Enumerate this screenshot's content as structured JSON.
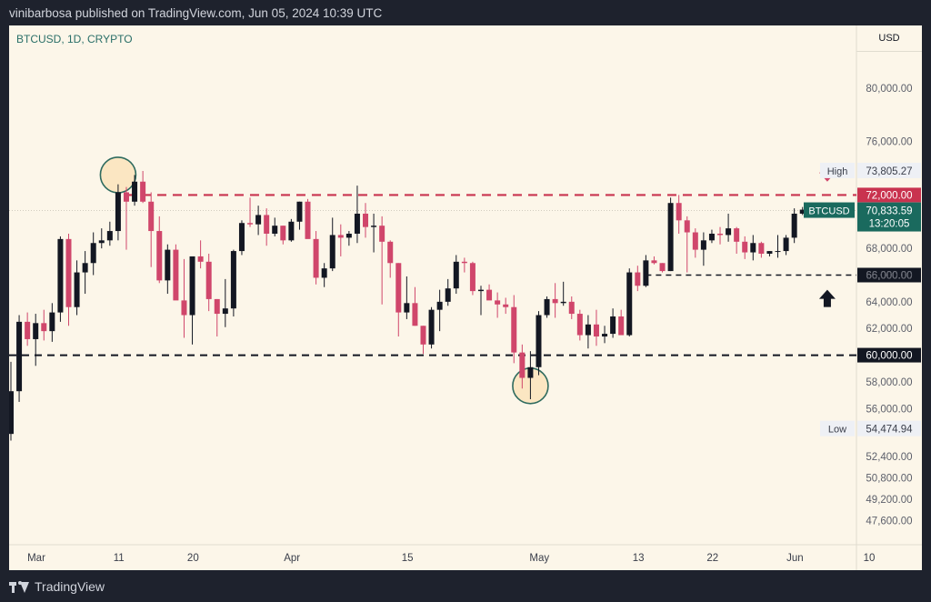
{
  "header": {
    "published_text": "vinibarbosa published on TradingView.com, Jun 05, 2024 10:39 UTC"
  },
  "chart_header": {
    "symbol_info": "BTCUSD, 1D, CRYPTO",
    "currency": "USD"
  },
  "footer": {
    "brand": "TradingView"
  },
  "colors": {
    "background": "#fcf6e9",
    "up_candle": "#131722",
    "down_candle": "#d0466b",
    "resistance_line": "#c9334f",
    "support_line": "#131722",
    "highlight_circle": "#2f6b5f",
    "highlight_fill": "#fbe6c2",
    "price_label": "#1a6a5e"
  },
  "chart_data": {
    "type": "candlestick",
    "title": "BTCUSD, 1D, CRYPTO",
    "ylim": [
      45800,
      84700
    ],
    "y_ticks": [
      "80,000.00",
      "76,000.00",
      "68,000.00",
      "66,000.00",
      "64,000.00",
      "62,000.00",
      "58,000.00",
      "56,000.00",
      "52,400.00",
      "50,800.00",
      "49,200.00",
      "47,600.00"
    ],
    "y_tick_values": [
      80000,
      76000,
      68000,
      66000,
      64000,
      62000,
      58000,
      56000,
      52400,
      50800,
      49200,
      47600
    ],
    "x_ticks": [
      {
        "label": "Mar",
        "day": 0
      },
      {
        "label": "11",
        "day": 10
      },
      {
        "label": "20",
        "day": 19
      },
      {
        "label": "Apr",
        "day": 31
      },
      {
        "label": "15",
        "day": 45
      },
      {
        "label": "May",
        "day": 61
      },
      {
        "label": "13",
        "day": 73
      },
      {
        "label": "22",
        "day": 82
      },
      {
        "label": "Jun",
        "day": 92
      },
      {
        "label": "10",
        "day": 101
      }
    ],
    "candles_ohlc": [
      [
        54100,
        59500,
        53600,
        57300
      ],
      [
        57300,
        63000,
        56500,
        62500
      ],
      [
        62500,
        63200,
        60700,
        61200
      ],
      [
        61200,
        63100,
        59200,
        62400
      ],
      [
        62400,
        63400,
        61100,
        61800
      ],
      [
        61800,
        63900,
        61000,
        63200
      ],
      [
        63200,
        68900,
        62500,
        68700
      ],
      [
        68700,
        69100,
        62200,
        63600
      ],
      [
        63600,
        67100,
        63000,
        66200
      ],
      [
        66200,
        67800,
        64600,
        66900
      ],
      [
        66900,
        69200,
        66000,
        68400
      ],
      [
        68400,
        69500,
        68000,
        68600
      ],
      [
        68600,
        70000,
        68200,
        69300
      ],
      [
        69300,
        72800,
        68600,
        72200
      ],
      [
        72200,
        72600,
        67900,
        71500
      ],
      [
        71500,
        73500,
        71200,
        73000
      ],
      [
        73000,
        73800,
        71400,
        71500
      ],
      [
        71500,
        72200,
        66600,
        69300
      ],
      [
        69300,
        70400,
        65400,
        65600
      ],
      [
        65600,
        68300,
        64600,
        67900
      ],
      [
        67900,
        68300,
        64200,
        64100
      ],
      [
        64100,
        67200,
        61300,
        63000
      ],
      [
        63000,
        67000,
        60800,
        67400
      ],
      [
        67400,
        68600,
        66500,
        67000
      ],
      [
        67000,
        67600,
        63300,
        64200
      ],
      [
        64200,
        64200,
        61400,
        63100
      ],
      [
        63100,
        65700,
        62100,
        63500
      ],
      [
        63500,
        67900,
        62900,
        67800
      ],
      [
        67800,
        70100,
        67500,
        69900
      ],
      [
        69900,
        71800,
        69600,
        69800
      ],
      [
        69800,
        71200,
        69000,
        70500
      ],
      [
        70500,
        71000,
        68200,
        69100
      ],
      [
        69100,
        70300,
        68900,
        69700
      ],
      [
        69700,
        69700,
        68300,
        68600
      ],
      [
        68600,
        70200,
        68500,
        70000
      ],
      [
        70000,
        71500,
        69400,
        71500
      ],
      [
        71500,
        71700,
        68800,
        68700
      ],
      [
        68700,
        69300,
        65300,
        65800
      ],
      [
        65800,
        66900,
        65100,
        66500
      ],
      [
        66500,
        70300,
        66300,
        69000
      ],
      [
        69000,
        69800,
        67400,
        68800
      ],
      [
        68800,
        69300,
        68200,
        69100
      ],
      [
        69100,
        72700,
        68400,
        70600
      ],
      [
        70600,
        71400,
        68800,
        69600
      ],
      [
        69600,
        70600,
        67700,
        69700
      ],
      [
        69700,
        70400,
        63800,
        68500
      ],
      [
        68500,
        68600,
        65800,
        66900
      ],
      [
        66900,
        66900,
        61400,
        63200
      ],
      [
        63200,
        65900,
        62700,
        63900
      ],
      [
        63900,
        65100,
        62200,
        62200
      ],
      [
        62200,
        62200,
        60100,
        60800
      ],
      [
        60800,
        63600,
        60500,
        63400
      ],
      [
        63400,
        64900,
        61800,
        64000
      ],
      [
        64000,
        65700,
        63700,
        65000
      ],
      [
        65000,
        67500,
        64600,
        67000
      ],
      [
        67000,
        67300,
        66200,
        66900
      ],
      [
        66900,
        67000,
        64500,
        64800
      ],
      [
        64800,
        65200,
        63000,
        64900
      ],
      [
        64900,
        65300,
        64300,
        64100
      ],
      [
        64100,
        64700,
        62800,
        63800
      ],
      [
        63800,
        64300,
        63100,
        63600
      ],
      [
        63600,
        64500,
        59400,
        60200
      ],
      [
        60200,
        60800,
        57500,
        58300
      ],
      [
        58300,
        60300,
        56700,
        59100
      ],
      [
        59100,
        63300,
        58500,
        63000
      ],
      [
        63000,
        64400,
        62800,
        64200
      ],
      [
        64200,
        65400,
        62800,
        63900
      ],
      [
        63900,
        65500,
        63700,
        64000
      ],
      [
        64000,
        64400,
        62700,
        63100
      ],
      [
        63100,
        63400,
        61100,
        61500
      ],
      [
        61500,
        63000,
        60500,
        62300
      ],
      [
        62300,
        63400,
        60700,
        61400
      ],
      [
        61400,
        62200,
        60900,
        61600
      ],
      [
        61600,
        63500,
        61300,
        62900
      ],
      [
        62900,
        63400,
        61700,
        61500
      ],
      [
        61500,
        66500,
        61400,
        66200
      ],
      [
        66200,
        66700,
        64800,
        65200
      ],
      [
        65200,
        67500,
        65100,
        67100
      ],
      [
        67100,
        67400,
        66800,
        66900
      ],
      [
        66900,
        66900,
        66200,
        66300
      ],
      [
        66300,
        71800,
        66300,
        71400
      ],
      [
        71400,
        72000,
        69100,
        70100
      ],
      [
        70100,
        70400,
        66200,
        69200
      ],
      [
        69200,
        69500,
        67300,
        67900
      ],
      [
        67900,
        69200,
        66700,
        68600
      ],
      [
        68600,
        69400,
        68400,
        69100
      ],
      [
        69100,
        69600,
        68300,
        69000
      ],
      [
        69000,
        70600,
        68500,
        69500
      ],
      [
        69500,
        69600,
        67600,
        68500
      ],
      [
        68500,
        68900,
        67200,
        67700
      ],
      [
        67700,
        69000,
        67100,
        68400
      ],
      [
        68400,
        68500,
        67300,
        67600
      ],
      [
        67600,
        67800,
        67400,
        67800
      ],
      [
        67800,
        69000,
        67300,
        67800
      ],
      [
        67800,
        69000,
        67500,
        68800
      ],
      [
        68800,
        71000,
        68400,
        70600
      ],
      [
        70600,
        71100,
        70500,
        70900
      ]
    ],
    "lines": [
      {
        "label": "72,000.00",
        "value": 72000,
        "style": "dashed",
        "color": "resistance"
      },
      {
        "label": "66,000.00",
        "value": 66000,
        "style": "dashed",
        "color": "support"
      },
      {
        "label": "60,000.00",
        "value": 60000,
        "style": "dashed",
        "color": "support"
      }
    ],
    "price_labels": {
      "high_label": "High",
      "high_value": "73,805.27",
      "high_price": 73805.27,
      "low_label": "Low",
      "low_value": "54,474.94",
      "low_price": 54474.94,
      "current_symbol": "BTCUSD",
      "current_price_text": "70,833.59",
      "current_price": 70833.59,
      "countdown": "13:20:05"
    },
    "annotations": {
      "circles": [
        {
          "day": 13,
          "price": 73500
        },
        {
          "day": 63,
          "price": 57700
        }
      ],
      "arrow_down": {
        "day": 99,
        "price": 73000
      },
      "arrow_up": {
        "day": 99,
        "price": 64900
      }
    }
  }
}
